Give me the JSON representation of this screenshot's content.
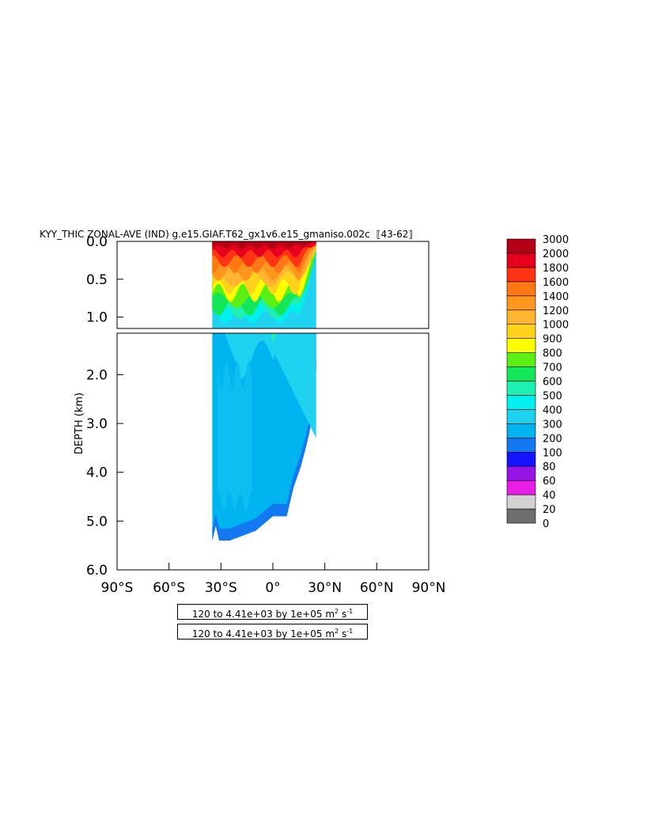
{
  "chart_data": {
    "type": "heatmap",
    "title": "KYY_THIC ZONAL-AVE (IND) g.e15.GIAF.T62_gx1v6.e15_gmaniso.002c",
    "title_years": "43-62",
    "ylabel": "DEPTH (km)",
    "xlabel": "",
    "x_ticks": [
      "90°S",
      "60°S",
      "30°S",
      "0°",
      "30°N",
      "60°N",
      "90°N"
    ],
    "x_tick_values": [
      -90,
      -60,
      -30,
      0,
      30,
      60,
      90
    ],
    "xlim": [
      -90,
      90
    ],
    "upper_panel": {
      "ylim": [
        0,
        1.15
      ],
      "y_ticks": [
        "0.0",
        "0.5",
        "1.0"
      ],
      "y_tick_values": [
        0,
        0.5,
        1.0
      ]
    },
    "lower_panel": {
      "ylim": [
        1.15,
        6.0
      ],
      "y_ticks": [
        "2.0",
        "3.0",
        "4.0",
        "5.0",
        "6.0"
      ],
      "y_tick_values": [
        2,
        3,
        4,
        5,
        6
      ]
    },
    "data_extent": {
      "lat_min": -35,
      "lat_max": 25,
      "bottom_depth_profile": [
        {
          "lat": -35,
          "depth": 5.4
        },
        {
          "lat": -33,
          "depth": 5.1
        },
        {
          "lat": -31,
          "depth": 5.4
        },
        {
          "lat": -25,
          "depth": 5.4
        },
        {
          "lat": -10,
          "depth": 5.2
        },
        {
          "lat": 0,
          "depth": 4.9
        },
        {
          "lat": 8,
          "depth": 4.9
        },
        {
          "lat": 12,
          "depth": 4.3
        },
        {
          "lat": 16,
          "depth": 3.9
        },
        {
          "lat": 19,
          "depth": 3.5
        },
        {
          "lat": 21,
          "depth": 3.2
        },
        {
          "lat": 23,
          "depth": 2.8
        },
        {
          "lat": 24,
          "depth": 2.2
        },
        {
          "lat": 25,
          "depth": 1.9
        }
      ]
    },
    "colorbar": {
      "levels": [
        "0",
        "20",
        "40",
        "60",
        "80",
        "100",
        "200",
        "300",
        "400",
        "500",
        "600",
        "700",
        "800",
        "900",
        "1000",
        "1200",
        "1400",
        "1600",
        "1800",
        "2000",
        "3000"
      ],
      "colors": [
        "#6e6e6e",
        "#d2d2d2",
        "#e61ee6",
        "#9614e6",
        "#1414ff",
        "#1478f0",
        "#00b4f0",
        "#1ed2f0",
        "#00f0f0",
        "#1ef0b4",
        "#14e65a",
        "#5af014",
        "#ffff00",
        "#ffd21e",
        "#ffb432",
        "#ff961e",
        "#ff7814",
        "#ff3214",
        "#e6001e",
        "#b40014"
      ]
    },
    "contour_info": [
      "120 to 4.41e+03 by 1e+05 m",
      "120 to 4.41e+03 by 1e+05 m"
    ],
    "units": {
      "base": "m",
      "exp1": "2",
      "mid": "s",
      "exp2": "-1"
    }
  }
}
